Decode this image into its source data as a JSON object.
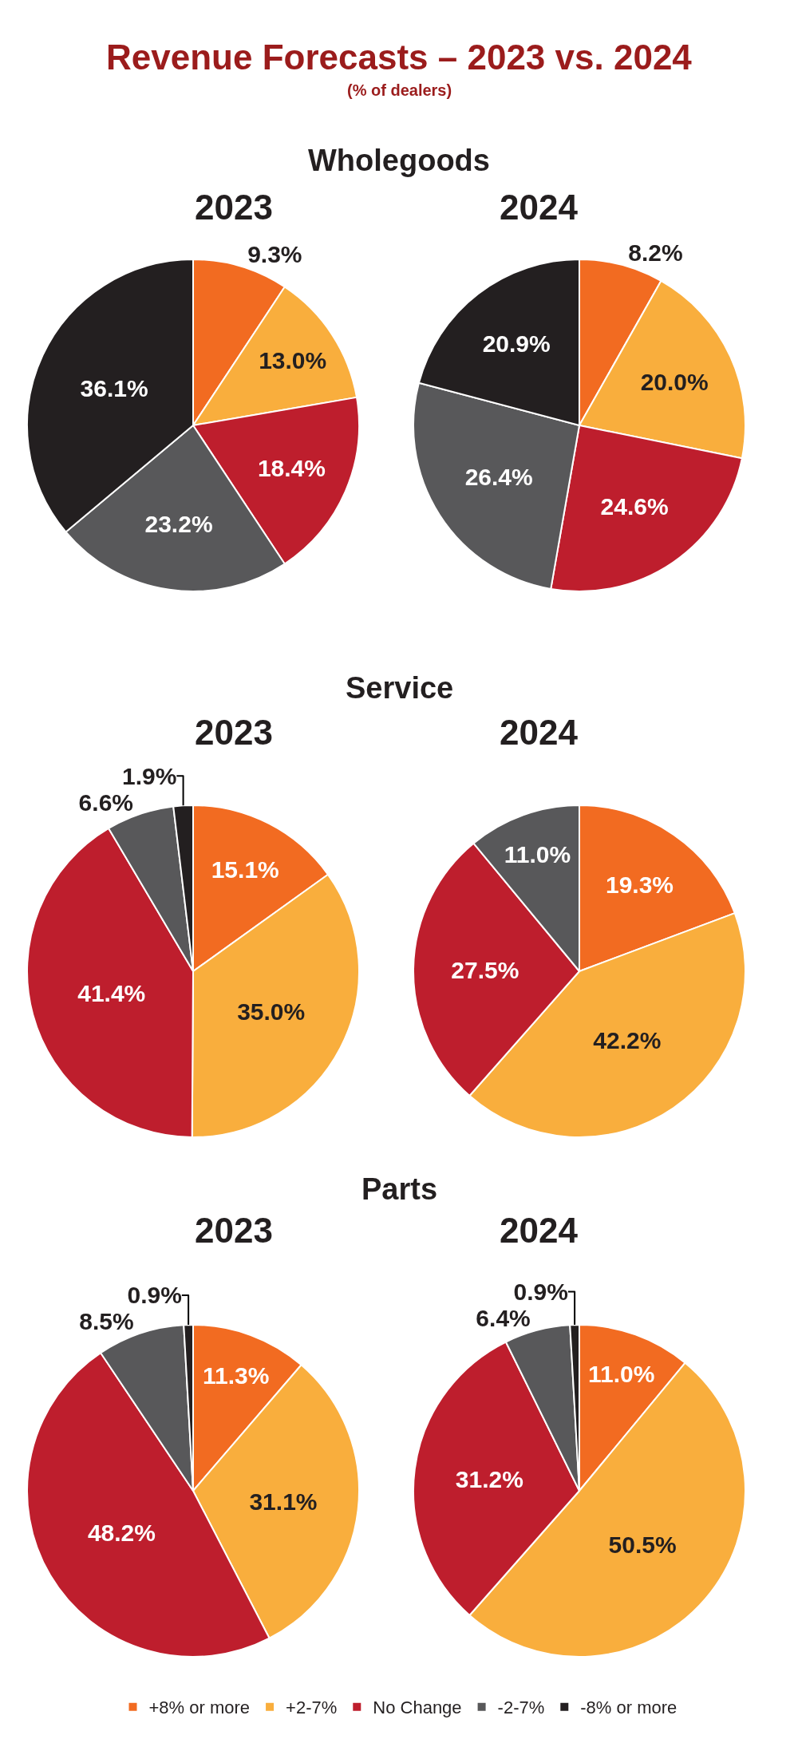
{
  "chart_data": [
    {
      "type": "other",
      "title": "Revenue Forecasts – 2023 vs. 2024",
      "subtitle": "(% of dealers)"
    },
    {
      "type": "pie",
      "title": "2023",
      "legend": "bottom",
      "annotations": [
        "Wholegoods"
      ],
      "categories": [
        "+8% or more",
        "+2-7%",
        "No Change",
        "-2-7%",
        "-8% or more"
      ],
      "values": [
        9.3,
        13.0,
        18.4,
        23.2,
        36.1
      ],
      "value_labels": [
        "9.3%",
        "13.0%",
        "18.4%",
        "23.2%",
        "36.1%"
      ],
      "colors": [
        "#f26b21",
        "#f9ae3d",
        "#be1e2d",
        "#58585a",
        "#231f20"
      ]
    },
    {
      "type": "pie",
      "title": "2024",
      "categories": [
        null,
        null,
        null,
        null,
        null
      ],
      "values": [
        8.2,
        20.0,
        24.6,
        26.4,
        20.9
      ],
      "value_labels": [
        "8.2%",
        "20.0%",
        "24.6%",
        "26.4%",
        "20.9%"
      ],
      "colors": [
        "#f26b21",
        "#f9ae3d",
        "#be1e2d",
        "#58585a",
        "#231f20"
      ]
    },
    {
      "type": "pie",
      "title": "2023",
      "annotations": [
        "Service"
      ],
      "categories": [
        null,
        null,
        null,
        null,
        null
      ],
      "values": [
        15.1,
        35.0,
        41.4,
        6.6,
        1.9
      ],
      "value_labels": [
        "15.1%",
        "35.0%",
        "41.4%",
        "6.6%",
        "1.9%"
      ],
      "colors": [
        "#f26b21",
        "#f9ae3d",
        "#be1e2d",
        "#58585a",
        "#231f20"
      ]
    },
    {
      "type": "pie",
      "title": "2024",
      "categories": [
        null,
        null,
        null,
        null
      ],
      "values": [
        19.3,
        42.2,
        27.5,
        11.0
      ],
      "value_labels": [
        "19.3%",
        "42.2%",
        "27.5%",
        "11.0%"
      ],
      "colors": [
        "#f26b21",
        "#f9ae3d",
        "#be1e2d",
        "#58585a"
      ]
    },
    {
      "type": "pie",
      "title": "2023",
      "annotations": [
        "Parts"
      ],
      "categories": [
        null,
        null,
        null,
        null,
        null
      ],
      "values": [
        11.3,
        31.1,
        48.2,
        8.5,
        0.9
      ],
      "value_labels": [
        "11.3%",
        "31.1%",
        "48.2%",
        "8.5%",
        "0.9%"
      ],
      "colors": [
        "#f26b21",
        "#f9ae3d",
        "#be1e2d",
        "#58585a",
        "#231f20"
      ]
    },
    {
      "type": "pie",
      "title": "2024",
      "categories": [
        null,
        null,
        null,
        null,
        null
      ],
      "values": [
        11.0,
        50.5,
        31.2,
        6.4,
        0.9
      ],
      "value_labels": [
        "11.0%",
        "50.5%",
        "31.2%",
        "6.4%",
        "0.9%"
      ],
      "colors": [
        "#f26b21",
        "#f9ae3d",
        "#be1e2d",
        "#58585a",
        "#231f20"
      ]
    }
  ]
}
